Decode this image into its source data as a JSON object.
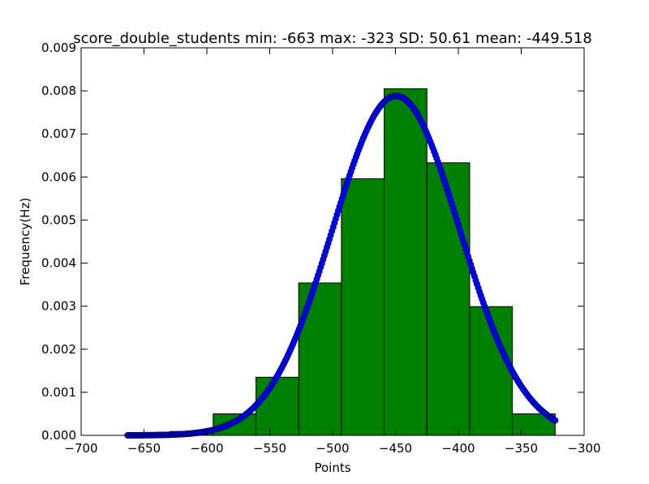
{
  "chart_data": {
    "type": "bar",
    "title": "score_double_students  min: -663    max: -323    SD: 50.61    mean: -449.518",
    "xlabel": "Points",
    "ylabel": "Frequency(Hz)",
    "xlim": [
      -700,
      -300
    ],
    "ylim": [
      0,
      0.009
    ],
    "xticks": [
      -700,
      -650,
      -600,
      -550,
      -500,
      -450,
      -400,
      -350,
      -300
    ],
    "xtick_labels": [
      "−700",
      "−650",
      "−600",
      "−550",
      "−500",
      "−450",
      "−400",
      "−350",
      "−300"
    ],
    "yticks": [
      0,
      0.001,
      0.002,
      0.003,
      0.004,
      0.005,
      0.006,
      0.007,
      0.008,
      0.009
    ],
    "ytick_labels": [
      "0.000",
      "0.001",
      "0.002",
      "0.003",
      "0.004",
      "0.005",
      "0.006",
      "0.007",
      "0.008",
      "0.009"
    ],
    "grid": false,
    "histogram": {
      "bin_edges": [
        -663,
        -629,
        -595,
        -561,
        -527,
        -493,
        -459,
        -425,
        -391,
        -357,
        -323
      ],
      "values": [
        3e-05,
        9e-05,
        0.0005,
        0.00135,
        0.00354,
        0.00596,
        0.00805,
        0.00633,
        0.00299,
        0.0005
      ],
      "color": "#008000",
      "edge_color": "#000000"
    },
    "normal_curve": {
      "mean": -449.518,
      "sd": 50.61,
      "x_min": -663,
      "x_max": -323,
      "marker_color": "#0000ff",
      "marker_edge": "#000080"
    }
  }
}
